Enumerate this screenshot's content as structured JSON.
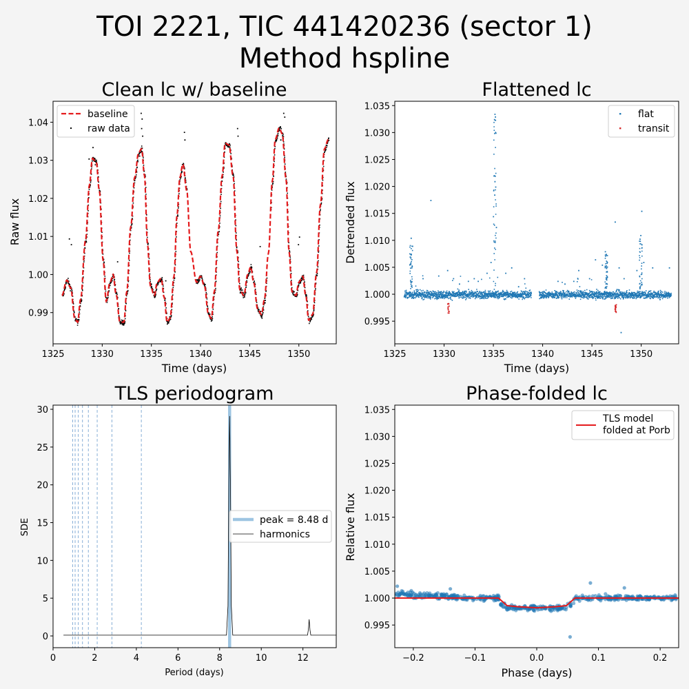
{
  "figure": {
    "title_line1": "TOI 2221, TIC 441420236 (sector 1)",
    "title_line2": "Method hspline"
  },
  "chart_data": [
    {
      "id": "clean",
      "type": "scatter",
      "title": "Clean lc w/ baseline",
      "xlabel": "Time (days)",
      "ylabel": "Raw flux",
      "xlim": [
        1325.0,
        1353.8
      ],
      "ylim": [
        0.9818,
        1.0455
      ],
      "xticks": [
        1325,
        1330,
        1335,
        1340,
        1345,
        1350
      ],
      "yticks": [
        0.99,
        1.0,
        1.01,
        1.02,
        1.03,
        1.04
      ],
      "ytick_labels": [
        "0.99",
        "1.00",
        "1.01",
        "1.02",
        "1.03",
        "1.04"
      ],
      "legend": [
        "baseline",
        "raw data"
      ],
      "legend_position": "upper left",
      "series": [
        {
          "name": "baseline",
          "style": "dashed-line",
          "color": "#e41a1c",
          "x": [
            1325.9,
            1326.4,
            1326.8,
            1327.2,
            1327.5,
            1327.8,
            1328.3,
            1328.7,
            1329.0,
            1329.4,
            1329.7,
            1330.1,
            1330.4,
            1330.8,
            1331.1,
            1331.4,
            1331.8,
            1332.2,
            1332.5,
            1332.9,
            1333.3,
            1333.7,
            1334.0,
            1334.3,
            1334.6,
            1334.9,
            1335.3,
            1335.6,
            1336.0,
            1336.3,
            1336.6,
            1336.9,
            1337.3,
            1337.6,
            1337.9,
            1338.2,
            1338.6,
            1339.0,
            1339.6,
            1340.0,
            1340.4,
            1340.8,
            1341.1,
            1341.4,
            1341.8,
            1342.2,
            1342.5,
            1342.9,
            1343.3,
            1343.7,
            1344.0,
            1344.4,
            1344.8,
            1345.1,
            1345.4,
            1345.8,
            1346.2,
            1346.5,
            1346.9,
            1347.3,
            1347.6,
            1348.0,
            1348.3,
            1348.7,
            1349.0,
            1349.3,
            1349.7,
            1350.0,
            1350.4,
            1350.7,
            1351.0,
            1351.4,
            1351.8,
            1352.2,
            1352.6,
            1353.0
          ],
          "y": [
            0.9945,
            0.9985,
            0.9965,
            0.9885,
            0.9875,
            0.9935,
            1.009,
            1.0235,
            1.0305,
            1.0295,
            1.022,
            1.0035,
            0.993,
            0.998,
            1.0,
            0.995,
            0.9875,
            0.9875,
            0.9955,
            1.0125,
            1.0255,
            1.032,
            1.033,
            1.026,
            1.008,
            0.997,
            0.9945,
            0.998,
            0.999,
            0.994,
            0.9875,
            0.9885,
            0.9995,
            1.0155,
            1.0255,
            1.029,
            1.022,
            1.006,
            0.998,
            0.9995,
            0.997,
            0.9895,
            0.9885,
            0.9955,
            1.0115,
            1.026,
            1.0345,
            1.034,
            1.026,
            1.006,
            0.996,
            0.9945,
            1.0,
            1.002,
            0.998,
            0.991,
            0.9895,
            0.9935,
            1.0055,
            1.0245,
            1.0355,
            1.0385,
            1.037,
            1.025,
            1.006,
            0.9955,
            0.9945,
            0.998,
            0.9995,
            0.9945,
            0.988,
            0.9895,
            1.0005,
            1.0185,
            1.033,
            1.0355
          ]
        }
      ]
    },
    {
      "id": "flat",
      "type": "scatter",
      "title": "Flattened lc",
      "xlabel": "Time (days)",
      "ylabel": "Detrended flux",
      "xlim": [
        1325.0,
        1353.8
      ],
      "ylim": [
        0.9908,
        1.0358
      ],
      "xticks": [
        1325,
        1330,
        1335,
        1340,
        1345,
        1350
      ],
      "yticks": [
        0.995,
        1.0,
        1.005,
        1.01,
        1.015,
        1.02,
        1.025,
        1.03,
        1.035
      ],
      "ytick_labels": [
        "0.995",
        "1.000",
        "1.005",
        "1.010",
        "1.015",
        "1.020",
        "1.025",
        "1.030",
        "1.035"
      ],
      "legend": [
        "flat",
        "transit"
      ],
      "legend_position": "upper right",
      "series": [
        {
          "name": "flat",
          "color": "#1f77b4",
          "gaps": [
            [
              1338.8,
              1339.6
            ]
          ],
          "outliers_x": [
            1335.1,
            1335.15,
            1335.05,
            1335.2,
            1335.12,
            1335.1,
            1335.18,
            1335.08,
            1334.95,
            1335.25,
            1328.6,
            1326.6,
            1326.75,
            1326.5,
            1329.4,
            1330.3,
            1330.9,
            1331.5,
            1332.4,
            1333.0,
            1333.4,
            1334.3,
            1334.7,
            1336.2,
            1336.8,
            1337.5,
            1338.1,
            1341.5,
            1342.2,
            1343.1,
            1343.6,
            1344.7,
            1345.3,
            1346.0,
            1346.3,
            1346.4,
            1346.5,
            1347.3,
            1347.7,
            1348.2,
            1349.5,
            1349.9,
            1350.0,
            1350.2,
            1351.1,
            1352.8,
            1347.9,
            1327.8
          ],
          "outliers_y": [
            1.0335,
            1.033,
            1.0325,
            1.03,
            1.022,
            1.021,
            1.02,
            1.0185,
            1.0145,
            1.0125,
            1.0175,
            1.0105,
            1.009,
            1.007,
            1.0035,
            1.0045,
            1.003,
            1.002,
            1.0025,
            1.003,
            1.0025,
            1.004,
            1.006,
            1.004,
            1.005,
            1.0015,
            1.003,
            1.0025,
            1.002,
            1.0025,
            1.0045,
            1.003,
            1.0065,
            1.0055,
            1.008,
            1.0075,
            1.006,
            1.0135,
            1.005,
            1.003,
            1.0045,
            1.011,
            1.0155,
            1.006,
            1.005,
            1.005,
            0.993,
            1.003
          ]
        },
        {
          "name": "transit",
          "color": "#d62728",
          "x": [
            1330.38,
            1347.35
          ],
          "depth_y": 0.9975
        }
      ]
    },
    {
      "id": "tls",
      "type": "line",
      "title": "TLS periodogram",
      "xlabel": "Period (days)",
      "ylabel": "SDE",
      "xlim": [
        0,
        13.6
      ],
      "ylim": [
        -1.55,
        30.55
      ],
      "xticks": [
        0,
        2,
        4,
        6,
        8,
        10,
        12
      ],
      "yticks": [
        0,
        5,
        10,
        15,
        20,
        25,
        30
      ],
      "legend": [
        "peak = 8.48 d",
        "harmonics"
      ],
      "legend_position": "center right",
      "peak_period": 8.48,
      "harmonics": [
        0.942,
        1.06,
        1.211,
        1.413,
        1.696,
        2.12,
        2.827,
        4.24
      ],
      "series": [
        {
          "name": "SDE",
          "color": "#000000",
          "x": [
            0.5,
            8.33,
            8.4,
            8.44,
            8.48,
            8.52,
            8.56,
            8.63,
            12.22,
            12.26,
            12.3,
            12.34,
            12.38,
            13.6
          ],
          "y": [
            0.1,
            0.1,
            4.0,
            20.0,
            29.1,
            20.0,
            4.0,
            0.1,
            0.1,
            0.8,
            2.2,
            0.8,
            0.1,
            0.1
          ]
        }
      ]
    },
    {
      "id": "fold",
      "type": "scatter",
      "title": "Phase-folded lc",
      "xlabel": "Phase (days)",
      "ylabel": "Relative flux",
      "xlim": [
        -0.23,
        0.23
      ],
      "ylim": [
        0.9908,
        1.0358
      ],
      "xticks": [
        -0.2,
        -0.1,
        0.0,
        0.1,
        0.2
      ],
      "xtick_labels": [
        "−0.2",
        "−0.1",
        "0.0",
        "0.1",
        "0.2"
      ],
      "yticks": [
        0.995,
        1.0,
        1.005,
        1.01,
        1.015,
        1.02,
        1.025,
        1.03,
        1.035
      ],
      "ytick_labels": [
        "0.995",
        "1.000",
        "1.005",
        "1.010",
        "1.015",
        "1.020",
        "1.025",
        "1.030",
        "1.035"
      ],
      "legend": [
        "TLS model",
        "folded at Porb"
      ],
      "legend_position": "upper right",
      "series": [
        {
          "name": "TLS model folded at Porb",
          "color": "#e41a1c",
          "x": [
            -0.23,
            -0.062,
            -0.055,
            -0.048,
            -0.03,
            0.0,
            0.03,
            0.048,
            0.055,
            0.062,
            0.23
          ],
          "y": [
            1.0,
            1.0,
            0.9993,
            0.9986,
            0.9984,
            0.9982,
            0.9984,
            0.9986,
            0.9993,
            1.0,
            1.0
          ]
        },
        {
          "name": "data",
          "color": "#1f77b4",
          "extra_points": [
            [
              0.087,
              1.0028
            ],
            [
              0.054,
              0.9928
            ],
            [
              -0.226,
              1.0022
            ],
            [
              0.142,
              1.0019
            ],
            [
              -0.14,
              1.0017
            ]
          ]
        }
      ]
    }
  ]
}
